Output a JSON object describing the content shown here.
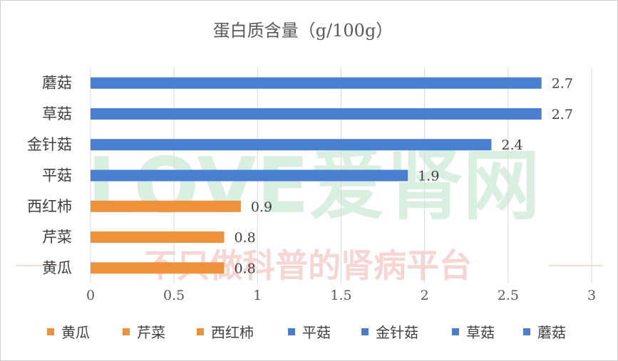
{
  "chart_data": {
    "type": "bar",
    "orientation": "horizontal",
    "title": "蛋白质含量（g/100g）",
    "categories": [
      "蘑菇",
      "草菇",
      "金针菇",
      "平菇",
      "西红柿",
      "芹菜",
      "黄瓜"
    ],
    "values": [
      2.7,
      2.7,
      2.4,
      1.9,
      0.9,
      0.8,
      0.8
    ],
    "data_labels": [
      "2.7",
      "2.7",
      "2.4",
      "1.9",
      "0.9",
      "0.8",
      "0.8"
    ],
    "series": [
      {
        "name": "黄瓜",
        "color": "#ED913A"
      },
      {
        "name": "芹菜",
        "color": "#ED913A"
      },
      {
        "name": "西红柿",
        "color": "#ED913A"
      },
      {
        "name": "平菇",
        "color": "#4A7FD0"
      },
      {
        "name": "金针菇",
        "color": "#4A7FD0"
      },
      {
        "name": "草菇",
        "color": "#4A7FD0"
      },
      {
        "name": "蘑菇",
        "color": "#4A7FD0"
      }
    ],
    "xlim": [
      0,
      3
    ],
    "x_ticks": [
      "0",
      "0.5",
      "1",
      "1.5",
      "2",
      "2.5",
      "3"
    ],
    "grid": true,
    "legend_position": "bottom"
  },
  "watermark": {
    "brand": "LOVE爱肾网",
    "slogan": "不只做科普的肾病平台"
  },
  "colors": {
    "blue": "#4A7FD0",
    "orange": "#ED913A",
    "grid": "#d9d9d9",
    "watermark_green": "#d9efe0",
    "watermark_red": "#f6d6d2"
  }
}
